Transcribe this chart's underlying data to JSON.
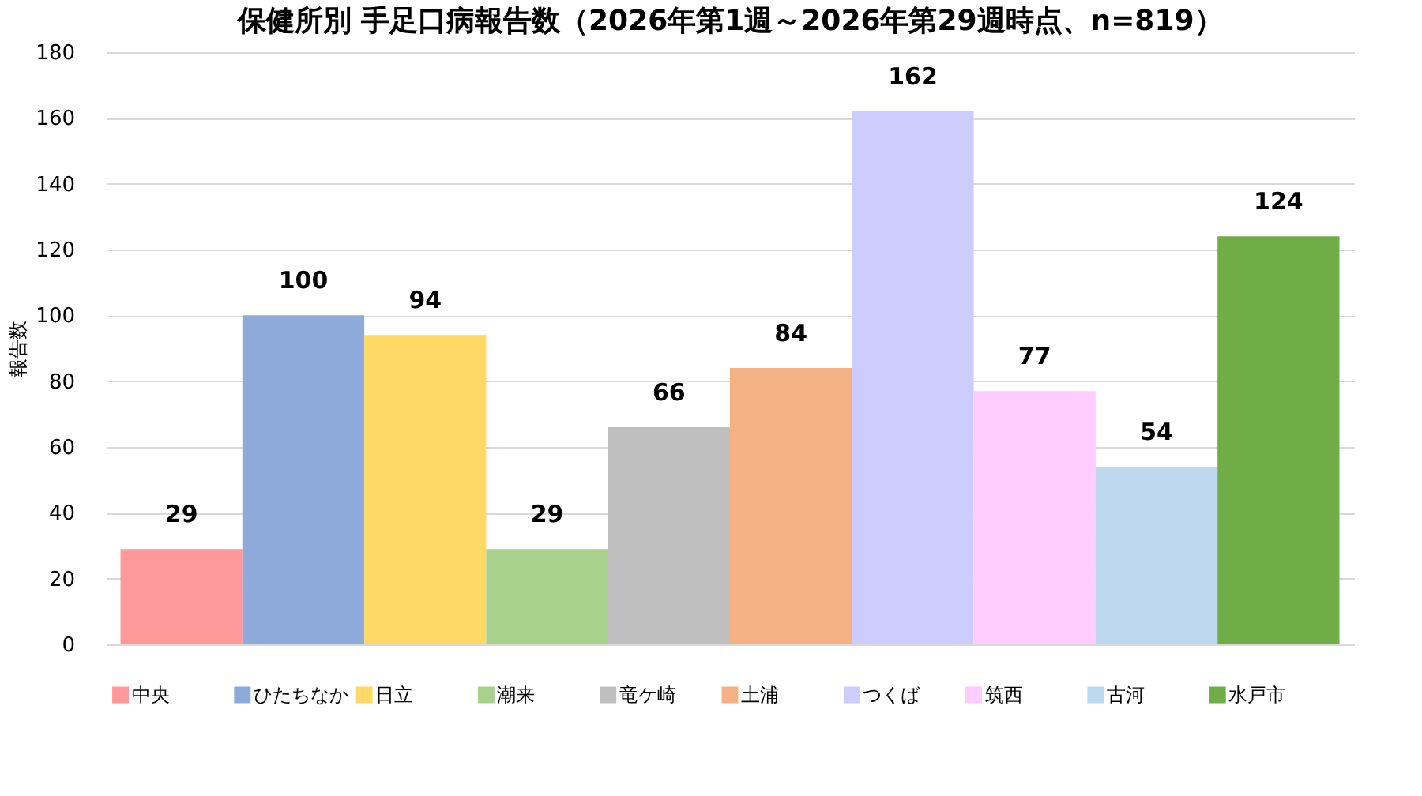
{
  "chart_data": {
    "type": "bar",
    "title": "保健所別 手足口病報告数（2026年第1週～2026年第29週時点、n=819）",
    "ylabel": "報告数",
    "categories": [
      null,
      null,
      null,
      null,
      null,
      null,
      null,
      null,
      null,
      null
    ],
    "series": [
      {
        "name": "中央",
        "color": "#ff9999",
        "values": [
          29,
          null,
          null,
          null,
          null,
          null,
          null,
          null,
          null,
          null
        ]
      },
      {
        "name": "ひたちなか",
        "color": "#8eaadb",
        "values": [
          null,
          100,
          null,
          null,
          null,
          null,
          null,
          null,
          null,
          null
        ]
      },
      {
        "name": "日立",
        "color": "#ffd966",
        "values": [
          null,
          null,
          94,
          null,
          null,
          null,
          null,
          null,
          null,
          null
        ]
      },
      {
        "name": "潮来",
        "color": "#a9d18e",
        "values": [
          null,
          null,
          null,
          29,
          null,
          null,
          null,
          null,
          null,
          null
        ]
      },
      {
        "name": "竜ケ崎",
        "color": "#bfbfbf",
        "values": [
          null,
          null,
          null,
          null,
          66,
          null,
          null,
          null,
          null,
          null
        ]
      },
      {
        "name": "土浦",
        "color": "#f4b183",
        "values": [
          null,
          null,
          null,
          null,
          null,
          84,
          null,
          null,
          null,
          null
        ]
      },
      {
        "name": "つくば",
        "color": "#ccccff",
        "values": [
          null,
          null,
          null,
          null,
          null,
          null,
          162,
          null,
          null,
          null
        ]
      },
      {
        "name": "筑西",
        "color": "#ffccff",
        "values": [
          null,
          null,
          null,
          null,
          null,
          null,
          null,
          77,
          null,
          null
        ]
      },
      {
        "name": "古河",
        "color": "#bdd7ee",
        "values": [
          null,
          null,
          null,
          null,
          null,
          null,
          null,
          null,
          54,
          null
        ]
      },
      {
        "name": "水戸市",
        "color": "#70ad47",
        "values": [
          null,
          null,
          null,
          null,
          null,
          null,
          null,
          null,
          null,
          124
        ]
      }
    ],
    "ylim": [
      0,
      180
    ],
    "yticks": [
      0,
      20,
      40,
      60,
      80,
      100,
      120,
      140,
      160,
      180
    ],
    "grid": "y",
    "legend": "bottom",
    "data_labels": true,
    "tick_labels": "y"
  }
}
